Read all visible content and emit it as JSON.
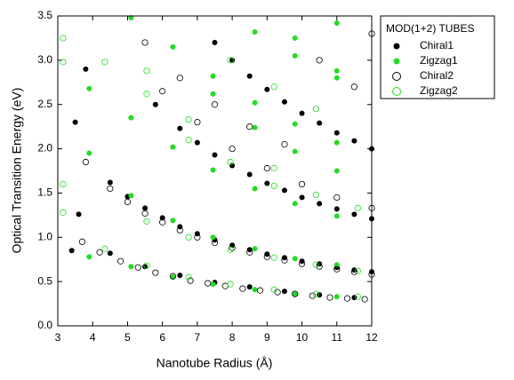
{
  "chart_data": {
    "type": "scatter",
    "xlabel": "Nanotube Radius (Å)",
    "ylabel": "Optical Transition Energy (eV)",
    "xlim": [
      3,
      12
    ],
    "ylim": [
      0,
      3.5
    ],
    "xticks": [
      3,
      4,
      5,
      6,
      7,
      8,
      9,
      10,
      11,
      12
    ],
    "yticks": [
      {
        "value": 0,
        "label": "0.0"
      },
      0.5,
      {
        "value": 1,
        "label": "1.0"
      },
      1.5,
      {
        "value": 2,
        "label": "2.0"
      },
      2.5,
      {
        "value": 3,
        "label": "3.0"
      },
      3.5
    ],
    "legend_title": "MOD(1+2) TUBES",
    "legend": "outside right",
    "series": [
      {
        "name": "Chiral1",
        "color": "#000000",
        "marker": "filled",
        "x": [
          4.5,
          5.5,
          6.5,
          7.5,
          8.5,
          9.5,
          10.5,
          11.5,
          4.5,
          5.0,
          5.5,
          6.0,
          6.5,
          7.0,
          7.5,
          8.0,
          8.5,
          9.0,
          9.5,
          10.0,
          10.5,
          11.0,
          11.5,
          12.0,
          5.8,
          6.5,
          7.0,
          7.5,
          8.0,
          8.5,
          9.0,
          9.5,
          10.0,
          10.5,
          11.0,
          11.5,
          12.0,
          7.5,
          8.0,
          8.5,
          9.0,
          9.5,
          10.0,
          10.5,
          11.0,
          11.5,
          12.0,
          3.4,
          3.6,
          3.8,
          3.5
        ],
        "values": [
          0.82,
          0.67,
          0.57,
          0.49,
          0.44,
          0.39,
          0.35,
          0.32,
          1.62,
          1.46,
          1.33,
          1.22,
          1.12,
          1.04,
          0.97,
          0.91,
          0.86,
          0.81,
          0.77,
          0.73,
          0.7,
          0.66,
          0.63,
          0.61,
          2.5,
          2.23,
          2.07,
          1.93,
          1.81,
          1.71,
          1.61,
          1.53,
          1.45,
          1.38,
          1.32,
          1.26,
          1.21,
          3.2,
          3.0,
          2.82,
          2.67,
          2.53,
          2.4,
          2.29,
          2.18,
          2.09,
          2.0,
          0.85,
          1.26,
          2.9,
          2.3
        ]
      },
      {
        "name": "Zigzag1",
        "color": "#22dd22",
        "marker": "filled",
        "x": [
          3.9,
          5.1,
          6.3,
          7.45,
          8.65,
          9.8,
          11.0,
          3.9,
          5.1,
          6.3,
          7.45,
          8.65,
          9.8,
          11.0,
          3.9,
          5.1,
          6.3,
          7.45,
          8.65,
          9.8,
          11.0,
          5.1,
          6.3,
          7.45,
          7.45,
          8.65,
          8.65,
          9.8,
          9.8,
          11.0,
          11.0,
          8.65,
          9.8,
          9.8,
          11.0,
          11.0,
          11.0
        ],
        "values": [
          0.78,
          0.67,
          0.55,
          0.47,
          0.41,
          0.36,
          0.33,
          1.95,
          1.47,
          1.19,
          1.0,
          0.87,
          0.76,
          0.69,
          2.68,
          2.35,
          2.02,
          1.76,
          1.55,
          1.38,
          1.24,
          3.48,
          3.15,
          2.82,
          2.62,
          2.52,
          2.24,
          2.28,
          1.97,
          2.07,
          1.75,
          3.32,
          3.25,
          3.05,
          3.42,
          2.88,
          2.8
        ]
      },
      {
        "name": "Chiral2",
        "color": "#000000",
        "marker": "open",
        "x": [
          3.7,
          4.2,
          4.8,
          5.3,
          5.8,
          6.3,
          6.8,
          7.3,
          7.8,
          8.3,
          8.8,
          9.3,
          9.8,
          10.3,
          10.8,
          11.3,
          11.8,
          3.8,
          4.5,
          5.0,
          5.5,
          6.0,
          6.5,
          7.0,
          7.5,
          8.0,
          8.5,
          9.0,
          9.5,
          10.0,
          10.5,
          11.0,
          11.5,
          12.0,
          6.0,
          7.0,
          8.0,
          9.0,
          10.0,
          11.0,
          12.0,
          5.5,
          6.5,
          7.5,
          8.5,
          9.5,
          10.5,
          11.5,
          12.0
        ],
        "values": [
          0.95,
          0.83,
          0.73,
          0.66,
          0.6,
          0.56,
          0.51,
          0.48,
          0.45,
          0.42,
          0.4,
          0.38,
          0.36,
          0.34,
          0.32,
          0.31,
          0.3,
          1.85,
          1.55,
          1.4,
          1.27,
          1.17,
          1.08,
          1.0,
          0.94,
          0.88,
          0.83,
          0.78,
          0.74,
          0.7,
          0.67,
          0.64,
          0.61,
          0.58,
          2.65,
          2.3,
          2.0,
          1.78,
          1.6,
          1.45,
          1.33,
          3.2,
          2.8,
          2.5,
          2.25,
          2.05,
          3.0,
          2.7,
          3.3
        ]
      },
      {
        "name": "Zigzag2",
        "color": "#22dd22",
        "marker": "open",
        "x": [
          3.15,
          3.15,
          3.15,
          3.15,
          4.35,
          4.35,
          5.55,
          5.55,
          5.55,
          5.55,
          6.75,
          6.75,
          6.75,
          6.75,
          7.95,
          7.95,
          7.95,
          7.95,
          9.2,
          9.2,
          9.2,
          9.2,
          10.4,
          10.4,
          10.4,
          11.6,
          11.6,
          11.6,
          9.2,
          10.4
        ],
        "values": [
          3.25,
          2.98,
          1.6,
          1.28,
          2.98,
          0.87,
          2.88,
          2.62,
          1.18,
          0.68,
          2.33,
          2.1,
          1.0,
          0.55,
          3.0,
          1.85,
          0.86,
          0.47,
          1.78,
          1.58,
          0.77,
          0.41,
          1.48,
          0.69,
          0.36,
          1.33,
          0.62,
          0.33,
          2.7,
          2.45
        ]
      }
    ]
  }
}
